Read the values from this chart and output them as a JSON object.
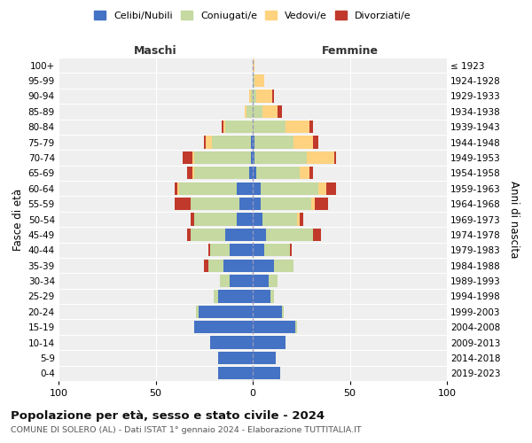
{
  "age_groups": [
    "0-4",
    "5-9",
    "10-14",
    "15-19",
    "20-24",
    "25-29",
    "30-34",
    "35-39",
    "40-44",
    "45-49",
    "50-54",
    "55-59",
    "60-64",
    "65-69",
    "70-74",
    "75-79",
    "80-84",
    "85-89",
    "90-94",
    "95-99",
    "100+"
  ],
  "birth_years": [
    "2019-2023",
    "2014-2018",
    "2009-2013",
    "2004-2008",
    "1999-2003",
    "1994-1998",
    "1989-1993",
    "1984-1988",
    "1979-1983",
    "1974-1978",
    "1969-1973",
    "1964-1968",
    "1959-1963",
    "1954-1958",
    "1949-1953",
    "1944-1948",
    "1939-1943",
    "1934-1938",
    "1929-1933",
    "1924-1928",
    "≤ 1923"
  ],
  "males": {
    "celibi": [
      18,
      18,
      22,
      30,
      28,
      18,
      12,
      15,
      12,
      14,
      8,
      7,
      8,
      2,
      1,
      1,
      0,
      0,
      0,
      0,
      0
    ],
    "coniugati": [
      0,
      0,
      0,
      0,
      1,
      2,
      5,
      8,
      10,
      18,
      22,
      25,
      30,
      28,
      29,
      20,
      14,
      3,
      1,
      0,
      0
    ],
    "vedovi": [
      0,
      0,
      0,
      0,
      0,
      0,
      0,
      0,
      0,
      0,
      0,
      0,
      1,
      1,
      1,
      3,
      1,
      1,
      1,
      0,
      0
    ],
    "divorziati": [
      0,
      0,
      0,
      0,
      0,
      0,
      0,
      2,
      1,
      2,
      2,
      8,
      1,
      3,
      5,
      1,
      1,
      0,
      0,
      0,
      0
    ]
  },
  "females": {
    "nubili": [
      14,
      12,
      17,
      22,
      15,
      9,
      8,
      11,
      6,
      7,
      5,
      4,
      4,
      2,
      1,
      1,
      0,
      0,
      0,
      0,
      0
    ],
    "coniugate": [
      0,
      0,
      0,
      1,
      1,
      2,
      5,
      10,
      13,
      24,
      18,
      26,
      30,
      22,
      27,
      20,
      17,
      5,
      2,
      1,
      0
    ],
    "vedove": [
      0,
      0,
      0,
      0,
      0,
      0,
      0,
      0,
      0,
      0,
      1,
      2,
      4,
      5,
      14,
      10,
      12,
      8,
      8,
      5,
      1
    ],
    "divorziate": [
      0,
      0,
      0,
      0,
      0,
      0,
      0,
      0,
      1,
      4,
      2,
      7,
      5,
      2,
      1,
      3,
      2,
      2,
      1,
      0,
      0
    ]
  },
  "colors": {
    "celibi": "#4472c4",
    "coniugati": "#c5d9a0",
    "vedovi": "#ffd280",
    "divorziati": "#c0392b"
  },
  "xlim": 100,
  "title": "Popolazione per età, sesso e stato civile - 2024",
  "subtitle": "COMUNE DI SOLERO (AL) - Dati ISTAT 1° gennaio 2024 - Elaborazione TUTTITALIA.IT",
  "ylabel_left": "Fasce di età",
  "ylabel_right": "Anni di nascita",
  "xlabel_left": "Maschi",
  "xlabel_right": "Femmine",
  "legend_labels": [
    "Celibi/Nubili",
    "Coniugati/e",
    "Vedovi/e",
    "Divorziati/e"
  ],
  "background_color": "#ffffff",
  "plot_bg": "#efefef"
}
